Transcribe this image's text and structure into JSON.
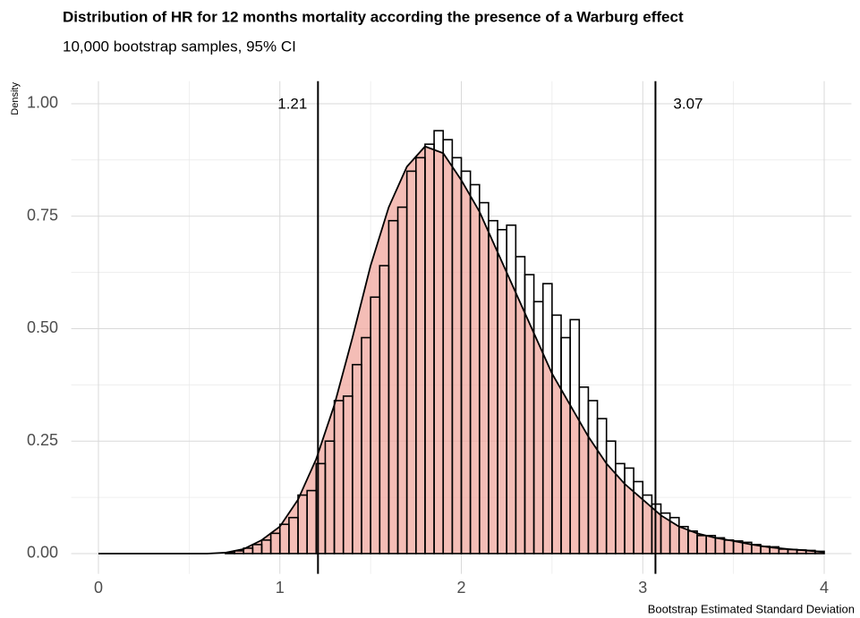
{
  "chart_data": {
    "type": "histogram",
    "title": "Distribution of HR for 12 months mortality according the presence of a Warburg effect",
    "subtitle": "10,000 bootstrap samples, 95% CI",
    "xlabel": "Bootstrap Estimated Standard Deviation",
    "ylabel": "Density",
    "bins": [
      0.7,
      0.75,
      0.8,
      0.85,
      0.9,
      0.95,
      1.0,
      1.05,
      1.1,
      1.15,
      1.2,
      1.25,
      1.3,
      1.35,
      1.4,
      1.45,
      1.5,
      1.55,
      1.6,
      1.65,
      1.7,
      1.75,
      1.8,
      1.85,
      1.9,
      1.95,
      2.0,
      2.05,
      2.1,
      2.15,
      2.2,
      2.25,
      2.3,
      2.35,
      2.4,
      2.45,
      2.5,
      2.55,
      2.6,
      2.65,
      2.7,
      2.75,
      2.8,
      2.85,
      2.9,
      2.95,
      3.0,
      3.05,
      3.1,
      3.15,
      3.2,
      3.25,
      3.3,
      3.35,
      3.4,
      3.45,
      3.5,
      3.55,
      3.6,
      3.65,
      3.7,
      3.75,
      3.8,
      3.85,
      3.9,
      3.95,
      4.0
    ],
    "values": [
      0.002,
      0.006,
      0.012,
      0.02,
      0.03,
      0.045,
      0.065,
      0.08,
      0.13,
      0.14,
      0.2,
      0.25,
      0.34,
      0.35,
      0.42,
      0.48,
      0.57,
      0.64,
      0.74,
      0.77,
      0.85,
      0.88,
      0.91,
      0.94,
      0.92,
      0.88,
      0.85,
      0.82,
      0.78,
      0.74,
      0.72,
      0.73,
      0.66,
      0.62,
      0.56,
      0.6,
      0.53,
      0.48,
      0.52,
      0.37,
      0.34,
      0.3,
      0.25,
      0.2,
      0.19,
      0.16,
      0.13,
      0.11,
      0.09,
      0.08,
      0.06,
      0.05,
      0.04,
      0.04,
      0.035,
      0.03,
      0.028,
      0.025,
      0.02,
      0.016,
      0.015,
      0.01,
      0.009,
      0.008,
      0.007,
      0.005
    ],
    "color": "#f0a79e",
    "density": {
      "x": [
        0,
        0.1,
        0.2,
        0.3,
        0.4,
        0.5,
        0.6,
        0.7,
        0.8,
        0.9,
        1.0,
        1.1,
        1.2,
        1.3,
        1.4,
        1.5,
        1.6,
        1.7,
        1.8,
        1.9,
        2.0,
        2.1,
        2.2,
        2.3,
        2.4,
        2.5,
        2.6,
        2.7,
        2.8,
        2.9,
        3.0,
        3.1,
        3.2,
        3.3,
        3.4,
        3.5,
        3.6,
        3.7,
        3.8,
        3.9,
        4.0
      ],
      "y": [
        0,
        0,
        0,
        0,
        0,
        0,
        0,
        0.002,
        0.01,
        0.03,
        0.06,
        0.12,
        0.21,
        0.33,
        0.48,
        0.64,
        0.77,
        0.86,
        0.905,
        0.89,
        0.83,
        0.76,
        0.67,
        0.58,
        0.49,
        0.4,
        0.33,
        0.26,
        0.2,
        0.155,
        0.12,
        0.085,
        0.06,
        0.045,
        0.035,
        0.028,
        0.02,
        0.014,
        0.01,
        0.007,
        0.003
      ]
    },
    "vlines": [
      {
        "value": 1.21,
        "label": "1.21"
      },
      {
        "value": 3.07,
        "label": "3.07"
      }
    ],
    "xlim": [
      -0.15,
      4.15
    ],
    "ylim": [
      -0.045,
      1.05
    ],
    "xticks": [
      0,
      1,
      2,
      3,
      4
    ],
    "yticks": [
      {
        "value": 0,
        "label": "0.00"
      },
      {
        "value": 0.25,
        "label": "0.25"
      },
      {
        "value": 0.5,
        "label": "0.50"
      },
      {
        "value": 0.75,
        "label": "0.75"
      },
      {
        "value": 1,
        "label": "1.00"
      }
    ],
    "x_minor_grid": [
      0.5,
      1.5,
      2.5,
      3.5
    ],
    "y_minor_grid": [
      0.125,
      0.375,
      0.625,
      0.875
    ],
    "grid": true
  }
}
